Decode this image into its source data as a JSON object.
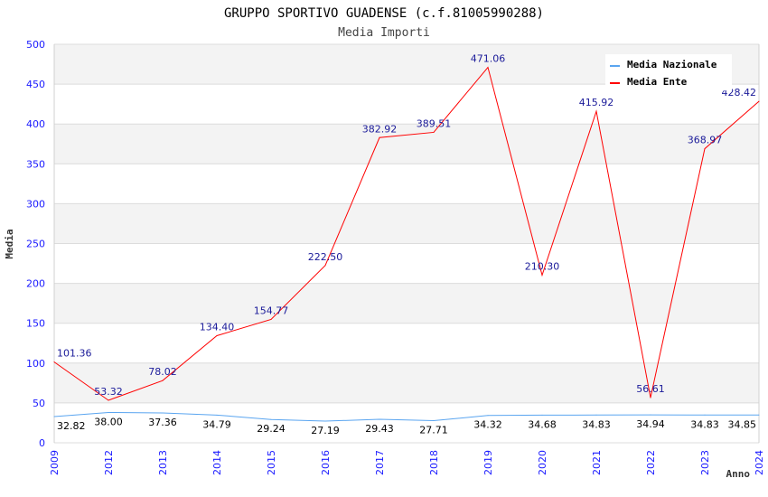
{
  "chart_data": {
    "type": "line",
    "title": "GRUPPO SPORTIVO GUADENSE (c.f.81005990288)",
    "subtitle": "Media Importi",
    "xlabel": "Anno",
    "ylabel": "Media",
    "ylim": [
      0,
      500
    ],
    "yticks": [
      0,
      50,
      100,
      150,
      200,
      250,
      300,
      350,
      400,
      450,
      500
    ],
    "categories": [
      "2009",
      "2012",
      "2013",
      "2014",
      "2015",
      "2016",
      "2017",
      "2018",
      "2019",
      "2020",
      "2021",
      "2022",
      "2023",
      "2024"
    ],
    "series": [
      {
        "name": "Media Nazionale",
        "color": "#5aa5f0",
        "label_color": "#000000",
        "values": [
          32.82,
          38.0,
          37.36,
          34.79,
          29.24,
          27.19,
          29.43,
          27.71,
          34.32,
          34.68,
          34.83,
          34.94,
          34.83,
          34.85
        ]
      },
      {
        "name": "Media Ente",
        "color": "#ff0000",
        "label_color": "#1a1a99",
        "values": [
          101.36,
          53.32,
          78.02,
          134.4,
          154.77,
          222.5,
          382.92,
          389.51,
          471.06,
          210.3,
          415.92,
          56.61,
          368.97,
          428.42
        ]
      }
    ],
    "grid": true,
    "legend": "top-right"
  }
}
